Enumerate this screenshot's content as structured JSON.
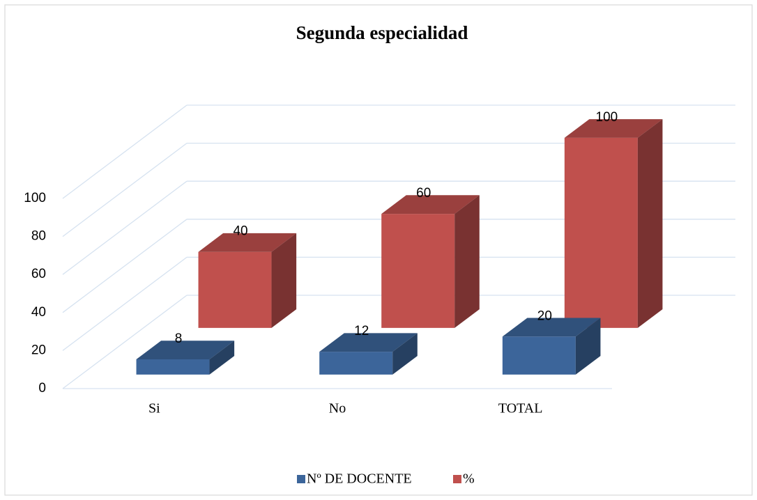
{
  "chart_data": {
    "type": "bar3d",
    "title": "Segunda especialidad",
    "categories": [
      "Si",
      "No",
      "TOTAL"
    ],
    "series": [
      {
        "name": "Nº DE DOCENTE",
        "color": "#3c659a",
        "values": [
          8,
          12,
          20
        ]
      },
      {
        "name": "%",
        "color": "#c0504d",
        "values": [
          40,
          60,
          100
        ]
      }
    ],
    "ylim": [
      0,
      100
    ],
    "yticks": [
      0,
      20,
      40,
      60,
      80,
      100
    ],
    "grid": true,
    "legend": "bottom"
  }
}
